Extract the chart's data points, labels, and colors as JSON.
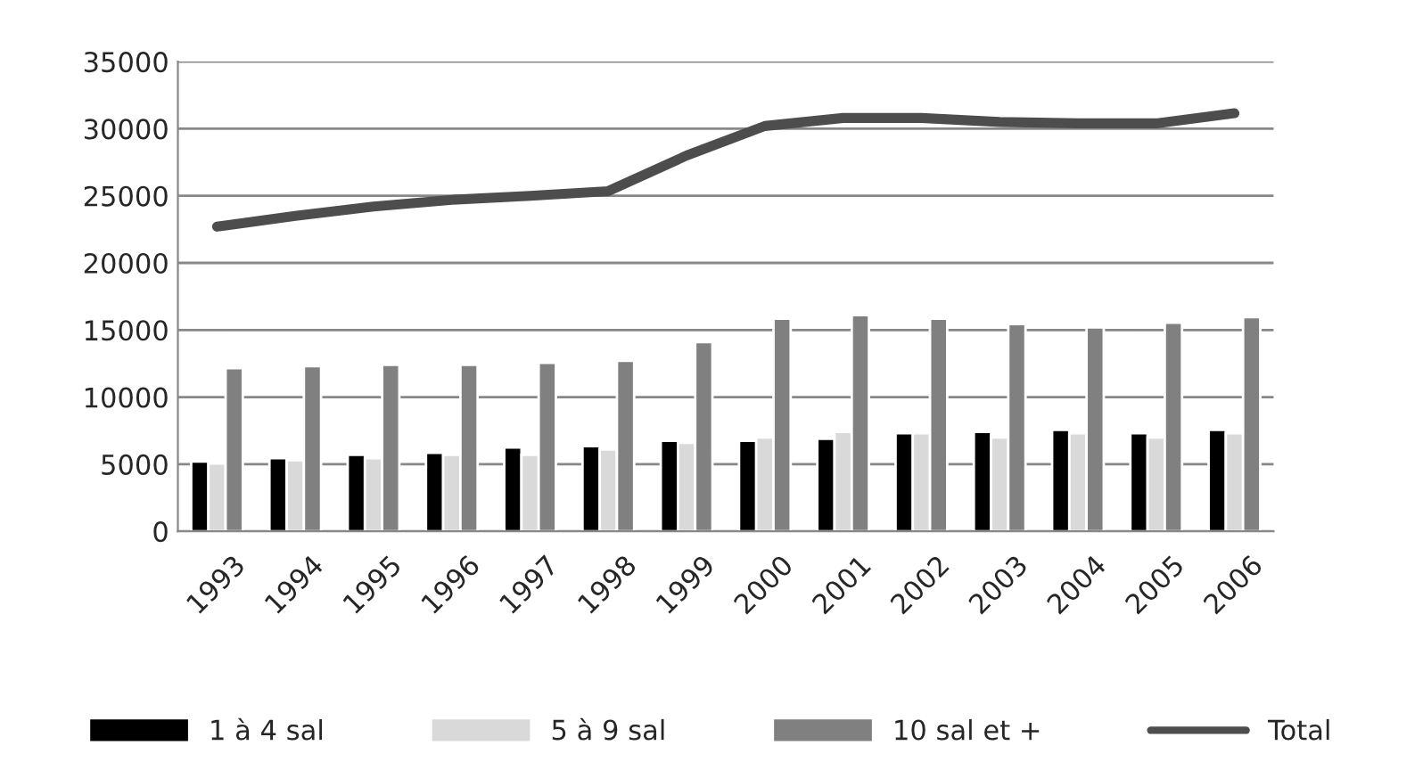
{
  "chart_data": {
    "type": "bar",
    "categories": [
      "1993",
      "1994",
      "1995",
      "1996",
      "1997",
      "1998",
      "1999",
      "2000",
      "2001",
      "2002",
      "2003",
      "2004",
      "2005",
      "2006"
    ],
    "series": [
      {
        "name": "1 à 4 sal",
        "color": "#000000",
        "values": [
          5200,
          5450,
          5700,
          5850,
          6250,
          6350,
          6750,
          6750,
          6900,
          7300,
          7400,
          7550,
          7300,
          7550
        ]
      },
      {
        "name": "5 à 9 sal",
        "color": "#d9d9d9",
        "values": [
          5050,
          5300,
          5450,
          5700,
          5700,
          6100,
          6600,
          7000,
          7400,
          7300,
          7000,
          7300,
          7000,
          7300
        ]
      },
      {
        "name": "10 sal et +",
        "color": "#808080",
        "values": [
          12150,
          12300,
          12400,
          12400,
          12550,
          12700,
          14100,
          15850,
          16100,
          15850,
          15450,
          15200,
          15550,
          15950
        ]
      },
      {
        "name": "Total",
        "type": "line",
        "color": "#4d4d4d",
        "values": [
          22700,
          23500,
          24200,
          24700,
          25000,
          25350,
          28000,
          30200,
          30800,
          30800,
          30500,
          30400,
          30400,
          31150
        ]
      }
    ],
    "ylim": [
      0,
      35000
    ],
    "yticks": [
      0,
      5000,
      10000,
      15000,
      20000,
      25000,
      30000,
      35000
    ],
    "grid": "y",
    "legend": "bottom"
  }
}
